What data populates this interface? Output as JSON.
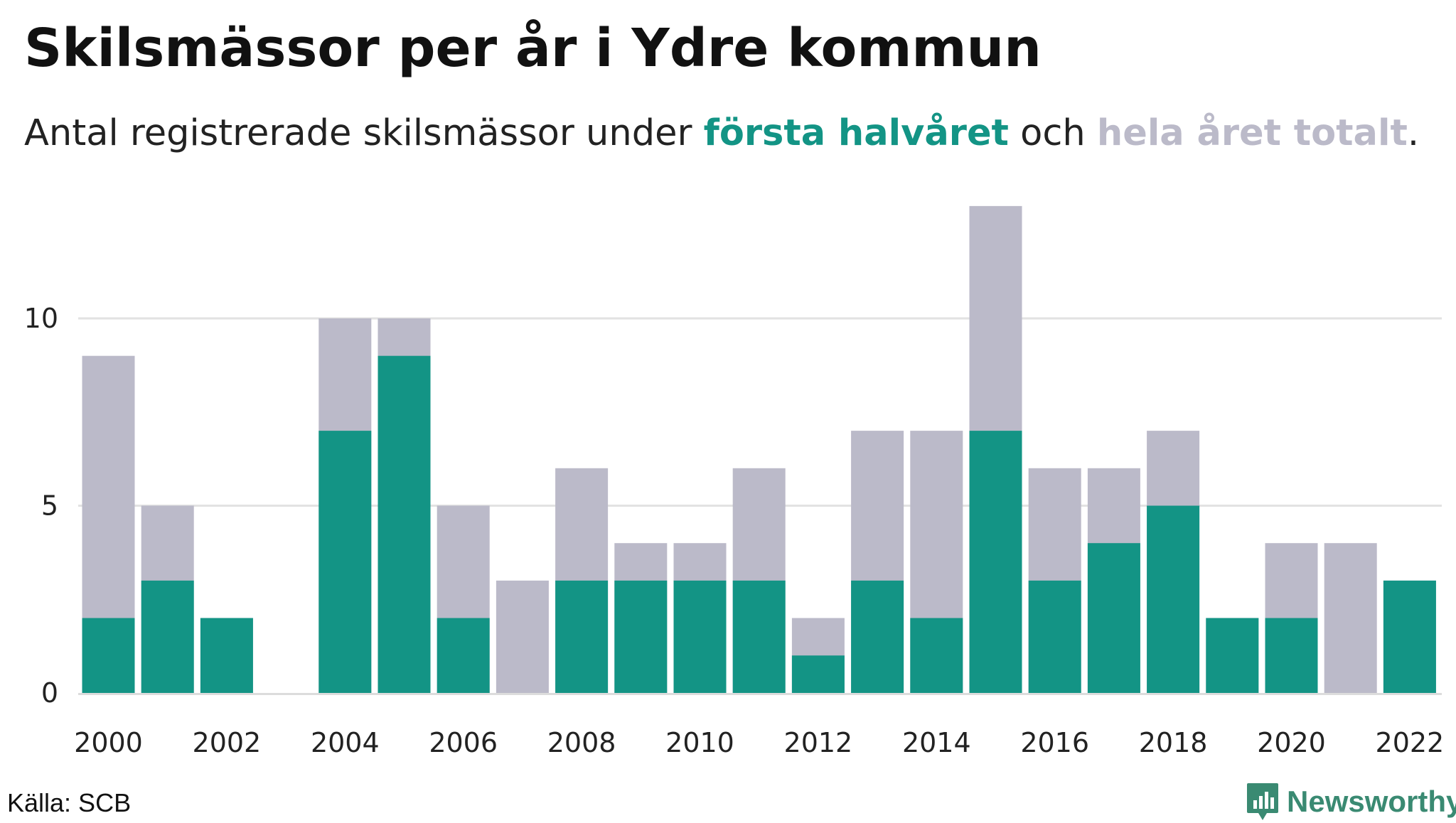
{
  "title": "Skilsmässor per år i Ydre kommun",
  "subtitle": {
    "prefix": "Antal registrerade skilsmässor under ",
    "highlight_first_half": "första halvåret",
    "middle": " och ",
    "highlight_total": "hela året totalt",
    "suffix": "."
  },
  "colors": {
    "first_half": "#139485",
    "total": "#bbbac9",
    "grid": "#e2e2e2",
    "axis": "#dcdcdc"
  },
  "chart_data": {
    "type": "bar",
    "bar_mode": "overlay",
    "categories": [
      "2000",
      "2001",
      "2002",
      "2003",
      "2004",
      "2005",
      "2006",
      "2007",
      "2008",
      "2009",
      "2010",
      "2011",
      "2012",
      "2013",
      "2014",
      "2015",
      "2016",
      "2017",
      "2018",
      "2019",
      "2020",
      "2021",
      "2022"
    ],
    "series": [
      {
        "name": "hela året totalt",
        "values": [
          9,
          5,
          2,
          0,
          10,
          10,
          5,
          3,
          6,
          4,
          4,
          6,
          2,
          7,
          7,
          13,
          6,
          6,
          7,
          2,
          4,
          4,
          3
        ]
      },
      {
        "name": "första halvåret",
        "values": [
          2,
          3,
          2,
          0,
          7,
          9,
          2,
          0,
          3,
          3,
          3,
          3,
          1,
          3,
          2,
          7,
          3,
          4,
          5,
          2,
          2,
          0,
          3
        ]
      }
    ],
    "x_tick_labels": [
      "2000",
      "2002",
      "2004",
      "2006",
      "2008",
      "2010",
      "2012",
      "2014",
      "2016",
      "2018",
      "2020",
      "2022"
    ],
    "y_ticks": [
      0,
      5,
      10
    ],
    "ylim": [
      0,
      13
    ],
    "grid": true,
    "xlabel": "",
    "ylabel": ""
  },
  "source": "Källa: SCB",
  "brand": {
    "name": "Newsworthy",
    "icon": "newsworthy-logo-icon",
    "color": "#3a8a72"
  }
}
